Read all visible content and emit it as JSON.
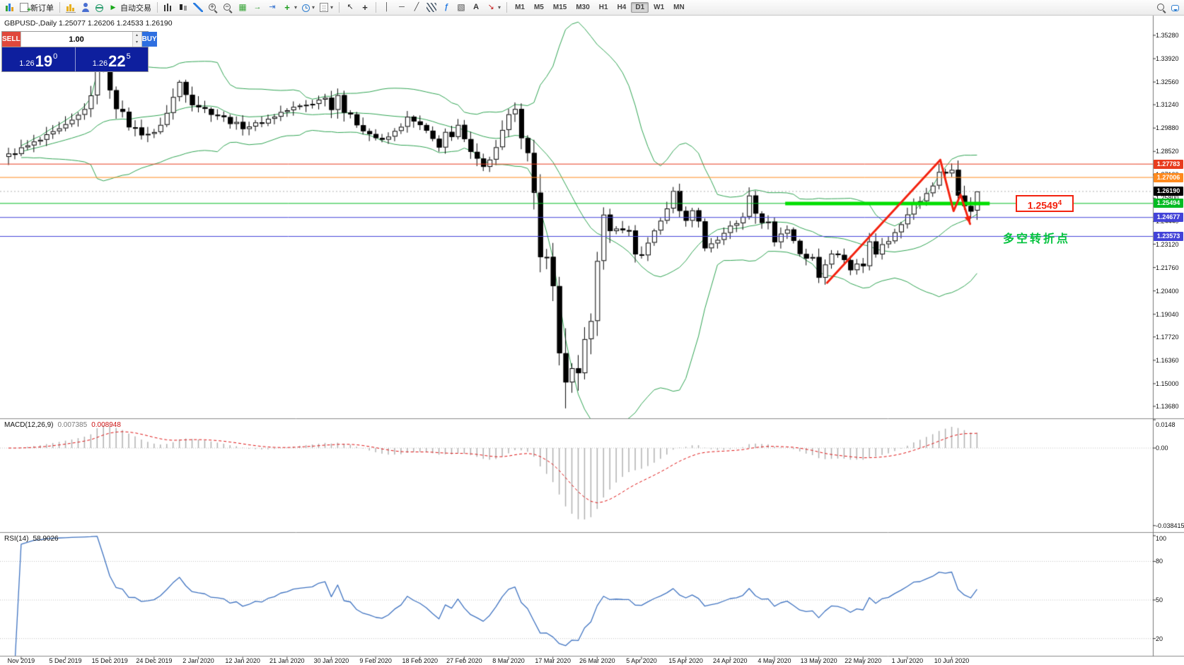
{
  "window": {
    "title": "MetaTrader chart window"
  },
  "toolbar": {
    "new_order_label": "新订单",
    "auto_trading_label": "自动交易",
    "active_timeframe": "D1",
    "dropdown_glyph": "▾",
    "icon_glyphs": {
      "play": "▶",
      "tile": "▦",
      "autoscroll": "→",
      "chartshift": "⇥",
      "indplus": "+",
      "cursor": "↖",
      "crosshair": "+",
      "vline": "│",
      "hline": "─",
      "trendline": "╱",
      "fibo": "ƒ",
      "shapes": "▧",
      "textlabel": "A",
      "arrowmark": "↘",
      "zoomin": "+",
      "zoomout": "−"
    },
    "items": [
      {
        "name": "terminal-icon",
        "icon": "appchart"
      },
      {
        "name": "new-order-button",
        "icon": "docplus",
        "label": "新订单"
      },
      {
        "sep": true
      },
      {
        "name": "new-chart-button",
        "icon": "chartyellow"
      },
      {
        "name": "profiles-button",
        "icon": "person"
      },
      {
        "name": "market-watch-button",
        "icon": "globe"
      },
      {
        "name": "auto-trading-button",
        "icon": "play",
        "label": "自动交易"
      },
      {
        "sep": true
      },
      {
        "name": "bar-chart-button",
        "icon": "bars"
      },
      {
        "name": "candlestick-chart-button",
        "icon": "candles"
      },
      {
        "name": "line-chart-button",
        "icon": "linechart"
      },
      {
        "name": "zoom-in-button",
        "icon": "zoomin"
      },
      {
        "name": "zoom-out-button",
        "icon": "zoomout"
      },
      {
        "name": "tile-windows-button",
        "icon": "tile"
      },
      {
        "name": "auto-scroll-button",
        "icon": "autoscroll"
      },
      {
        "name": "chart-shift-button",
        "icon": "chartshift"
      },
      {
        "name": "indicators-button",
        "icon": "indplus",
        "dropdown": true
      },
      {
        "name": "periods-button",
        "icon": "clock",
        "dropdown": true
      },
      {
        "name": "templates-button",
        "icon": "template",
        "dropdown": true
      },
      {
        "sep": true
      },
      {
        "name": "cursor-button",
        "icon": "cursor"
      },
      {
        "name": "crosshair-button",
        "icon": "crosshair"
      },
      {
        "sep": true
      },
      {
        "name": "vertical-line-button",
        "icon": "vline"
      },
      {
        "name": "horizontal-line-button",
        "icon": "hline"
      },
      {
        "name": "trendline-button",
        "icon": "trendline"
      },
      {
        "name": "channel-button",
        "icon": "channel"
      },
      {
        "name": "fibonacci-button",
        "icon": "fibo"
      },
      {
        "name": "shapes-button",
        "icon": "shapes"
      },
      {
        "name": "text-button",
        "icon": "textlabel"
      },
      {
        "name": "arrows-button",
        "icon": "arrowmark",
        "dropdown": true
      },
      {
        "sep": true
      },
      {
        "tf": "M1"
      },
      {
        "tf": "M5"
      },
      {
        "tf": "M15"
      },
      {
        "tf": "M30"
      },
      {
        "tf": "H1"
      },
      {
        "tf": "H4"
      },
      {
        "tf": "D1"
      },
      {
        "tf": "W1"
      },
      {
        "tf": "MN"
      },
      {
        "spacer": true
      },
      {
        "name": "search-button",
        "icon": "magnifier"
      },
      {
        "name": "community-button",
        "icon": "chat"
      }
    ]
  },
  "chart": {
    "symbol": "GBPUSD-",
    "period": "Daily",
    "title_text": "GBPUSD-,Daily 1.25077 1.26206 1.24533 1.26190",
    "bid_badge": "1.26190"
  },
  "one_click": {
    "sell_label": "SELL",
    "buy_label": "BUY",
    "volume": "1.00",
    "spin_up": "▴",
    "spin_down": "▾",
    "sell_price_small": "1.26",
    "sell_price_big": "19",
    "sell_price_sup": "0",
    "buy_price_small": "1.26",
    "buy_price_big": "22",
    "buy_price_sup": "5"
  },
  "panels": {
    "macd": {
      "label": "MACD(12,26,9)",
      "value_main": "0.007385",
      "value_signal": "0.008948",
      "axis_labels": [
        "0.0148",
        "0.00",
        "-0.038415"
      ]
    },
    "rsi": {
      "label": "RSI(14)",
      "value": "58.9026",
      "axis_labels": [
        "100",
        "80",
        "50",
        "20"
      ],
      "levels": [
        80,
        50,
        20
      ]
    }
  },
  "annotations": {
    "hlines": [
      {
        "price": 1.27783,
        "color": "#e83c1e",
        "label": "1.27783"
      },
      {
        "price": 1.27006,
        "color": "#ff8a1e",
        "label": "1.27006"
      },
      {
        "price": 1.25494,
        "color": "#00bb22",
        "label": "1.25494"
      },
      {
        "price": 1.24677,
        "color": "#4343d8",
        "label": "1.24677"
      },
      {
        "price": 1.23573,
        "color": "#4343d8",
        "label": "1.23573"
      }
    ],
    "thick_segment": {
      "price": 1.2549,
      "from_idx": 122.7,
      "to_idx": 155,
      "color": "#00de00",
      "width": 5
    },
    "trend_arrow": {
      "points": [
        [
          129.3,
          1.2087
        ],
        [
          147.2,
          1.2803
        ],
        [
          149.3,
          1.2505
        ],
        [
          150.4,
          1.26
        ],
        [
          151.9,
          1.243
        ]
      ],
      "color": "#f3220f",
      "width": 3
    },
    "price_callout": {
      "text_main": "1.2549",
      "text_sup": "4",
      "color": "#f3220f"
    },
    "note_text": {
      "text": "多空转折点",
      "color": "#00c23c"
    }
  },
  "chart_data": {
    "type": "candlestick",
    "symbol": "GBPUSD",
    "period": "Daily",
    "current": {
      "open": 1.25077,
      "high": 1.26206,
      "low": 1.24533,
      "close": 1.2619
    },
    "num_candles": 154,
    "y_axis": {
      "min": 1.1298,
      "max": 1.3643,
      "tick_labels": [
        "1.35280",
        "1.33920",
        "1.32560",
        "1.31240",
        "1.29880",
        "1.28520",
        "1.27160",
        "1.25800",
        "1.24440",
        "1.23120",
        "1.21760",
        "1.20400",
        "1.19040",
        "1.17720",
        "1.16360",
        "1.15000",
        "1.13680"
      ]
    },
    "x_axis": {
      "first_index": 2,
      "step": 7,
      "tick_labels": [
        "Nov 2019",
        "5 Dec 2019",
        "15 Dec 2019",
        "24 Dec 2019",
        "2 Jan 2020",
        "12 Jan 2020",
        "21 Jan 2020",
        "30 Jan 2020",
        "9 Feb 2020",
        "18 Feb 2020",
        "27 Feb 2020",
        "8 Mar 2020",
        "17 Mar 2020",
        "26 Mar 2020",
        "5 Apr 2020",
        "15 Apr 2020",
        "24 Apr 2020",
        "4 May 2020",
        "13 May 2020",
        "22 May 2020",
        "1 Jun 2020",
        "10 Jun 2020"
      ]
    },
    "indicators": {
      "bollinger": {
        "period": 20,
        "deviation": 2
      },
      "macd": {
        "fast": 12,
        "slow": 26,
        "signal": 9
      },
      "rsi": {
        "period": 14
      }
    },
    "close_waypoints": [
      [
        0,
        1.284,
        0.006
      ],
      [
        2,
        1.2865,
        0.005
      ],
      [
        4,
        1.29,
        0.005
      ],
      [
        6,
        1.2935,
        0.005
      ],
      [
        9,
        1.2995,
        0.005
      ],
      [
        11,
        1.306,
        0.005
      ],
      [
        13,
        1.316,
        0.006
      ],
      [
        14,
        1.3481,
        0.009
      ],
      [
        15,
        1.3333,
        0.009
      ],
      [
        17,
        1.312,
        0.007
      ],
      [
        19,
        1.3005,
        0.006
      ],
      [
        21,
        1.296,
        0.005
      ],
      [
        23,
        1.2955,
        0.004
      ],
      [
        25,
        1.3075,
        0.005
      ],
      [
        27,
        1.3257,
        0.005
      ],
      [
        29,
        1.314,
        0.006
      ],
      [
        31,
        1.3095,
        0.005
      ],
      [
        33,
        1.3065,
        0.004
      ],
      [
        35,
        1.3025,
        0.004
      ],
      [
        37,
        1.2995,
        0.004
      ],
      [
        39,
        1.301,
        0.004
      ],
      [
        41,
        1.304,
        0.004
      ],
      [
        43,
        1.308,
        0.004
      ],
      [
        45,
        1.3105,
        0.004
      ],
      [
        47,
        1.3125,
        0.004
      ],
      [
        49,
        1.315,
        0.005
      ],
      [
        50,
        1.318,
        0.005
      ],
      [
        51,
        1.3095,
        0.005
      ],
      [
        52,
        1.32,
        0.006
      ],
      [
        53,
        1.3085,
        0.006
      ],
      [
        55,
        1.3015,
        0.005
      ],
      [
        57,
        1.2955,
        0.005
      ],
      [
        59,
        1.291,
        0.004
      ],
      [
        61,
        1.2965,
        0.004
      ],
      [
        63,
        1.3045,
        0.004
      ],
      [
        65,
        1.3,
        0.004
      ],
      [
        67,
        1.292,
        0.005
      ],
      [
        68,
        1.2885,
        0.004
      ],
      [
        69,
        1.2965,
        0.004
      ],
      [
        70,
        1.2925,
        0.004
      ],
      [
        71,
        1.3,
        0.004
      ],
      [
        72,
        1.291,
        0.005
      ],
      [
        74,
        1.2823,
        0.005
      ],
      [
        75,
        1.2755,
        0.005
      ],
      [
        77,
        1.287,
        0.005
      ],
      [
        79,
        1.305,
        0.007
      ],
      [
        80,
        1.311,
        0.009
      ],
      [
        81,
        1.2903,
        0.009
      ],
      [
        82,
        1.2821,
        0.008
      ],
      [
        83,
        1.257,
        0.012
      ],
      [
        84,
        1.228,
        0.013
      ],
      [
        85,
        1.227,
        0.01
      ],
      [
        86,
        1.2045,
        0.013
      ],
      [
        87,
        1.1622,
        0.018
      ],
      [
        88,
        1.1486,
        0.016
      ],
      [
        89,
        1.1637,
        0.014
      ],
      [
        90,
        1.154,
        0.012
      ],
      [
        91,
        1.176,
        0.012
      ],
      [
        92,
        1.1881,
        0.01
      ],
      [
        93,
        1.2195,
        0.011
      ],
      [
        94,
        1.2455,
        0.009
      ],
      [
        95,
        1.2382,
        0.007
      ],
      [
        96,
        1.2416,
        0.006
      ],
      [
        97,
        1.238,
        0.006
      ],
      [
        98,
        1.239,
        0.006
      ],
      [
        99,
        1.2266,
        0.007
      ],
      [
        100,
        1.223,
        0.006
      ],
      [
        101,
        1.2336,
        0.006
      ],
      [
        102,
        1.2383,
        0.005
      ],
      [
        103,
        1.2466,
        0.006
      ],
      [
        104,
        1.2516,
        0.005
      ],
      [
        105,
        1.2626,
        0.006
      ],
      [
        106,
        1.2513,
        0.006
      ],
      [
        107,
        1.2455,
        0.005
      ],
      [
        108,
        1.25,
        0.005
      ],
      [
        109,
        1.2443,
        0.005
      ],
      [
        110,
        1.2297,
        0.006
      ],
      [
        111,
        1.2328,
        0.004
      ],
      [
        112,
        1.2348,
        0.004
      ],
      [
        113,
        1.2367,
        0.004
      ],
      [
        114,
        1.2432,
        0.005
      ],
      [
        115,
        1.2433,
        0.004
      ],
      [
        116,
        1.2472,
        0.004
      ],
      [
        117,
        1.2594,
        0.006
      ],
      [
        118,
        1.25,
        0.006
      ],
      [
        119,
        1.244,
        0.005
      ],
      [
        120,
        1.2435,
        0.004
      ],
      [
        121,
        1.234,
        0.005
      ],
      [
        122,
        1.2364,
        0.004
      ],
      [
        123,
        1.241,
        0.004
      ],
      [
        124,
        1.2336,
        0.005
      ],
      [
        125,
        1.2259,
        0.005
      ],
      [
        126,
        1.2232,
        0.004
      ],
      [
        127,
        1.2227,
        0.004
      ],
      [
        128,
        1.2103,
        0.006
      ],
      [
        129,
        1.2195,
        0.005
      ],
      [
        130,
        1.2248,
        0.004
      ],
      [
        131,
        1.2236,
        0.004
      ],
      [
        132,
        1.2221,
        0.004
      ],
      [
        133,
        1.217,
        0.004
      ],
      [
        134,
        1.219,
        0.004
      ],
      [
        135,
        1.217,
        0.005
      ],
      [
        136,
        1.2336,
        0.006
      ],
      [
        137,
        1.226,
        0.005
      ],
      [
        138,
        1.232,
        0.004
      ],
      [
        139,
        1.2343,
        0.004
      ],
      [
        140,
        1.238,
        0.004
      ],
      [
        141,
        1.242,
        0.004
      ],
      [
        142,
        1.2491,
        0.005
      ],
      [
        143,
        1.2553,
        0.004
      ],
      [
        144,
        1.2573,
        0.004
      ],
      [
        145,
        1.2598,
        0.004
      ],
      [
        146,
        1.267,
        0.005
      ],
      [
        147,
        1.2731,
        0.005
      ],
      [
        148,
        1.2725,
        0.004
      ],
      [
        149,
        1.2753,
        0.006
      ],
      [
        150,
        1.2602,
        0.007
      ],
      [
        151,
        1.2541,
        0.006
      ],
      [
        152,
        1.2508,
        0.006
      ],
      [
        153,
        1.2619,
        0.006
      ]
    ]
  },
  "colors": {
    "bull": "#ffffff",
    "bear": "#000000",
    "outline": "#000000",
    "bollinger": "#2fa352",
    "macd_hist": "#b0b0b0",
    "macd_signal": "#dd1111",
    "rsi_line": "#3e72c0",
    "level_dotted": "#c0c0c0",
    "bid_line": "#b0b0b0",
    "separator": "#8a8a8a",
    "sell_bg": "#e0483c",
    "buy_bg": "#2e6fe0",
    "panel_bg": "#0e1f9e",
    "bid_badge_bg": "#000000"
  }
}
